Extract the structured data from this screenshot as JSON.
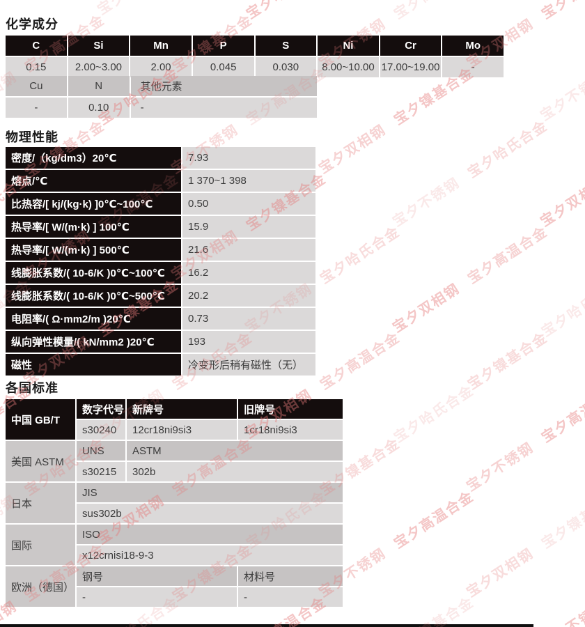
{
  "page": {
    "watermark": {
      "texts": [
        "宝夕不锈钢",
        "宝夕双相钢",
        "宝夕哈氏合金",
        "宝夕高温合金",
        "宝夕镍基合金"
      ],
      "color": "#e57a7a"
    }
  },
  "chemical": {
    "heading": "化学成分",
    "header": [
      "C",
      "Si",
      "Mn",
      "P",
      "S",
      "Ni",
      "Cr",
      "Mo"
    ],
    "values": [
      "0.15",
      "2.00~3.00",
      "2.00",
      "0.045",
      "0.030",
      "8.00~10.00",
      "17.00~19.00",
      "-"
    ],
    "extra_header": [
      "Cu",
      "N",
      "其他元素"
    ],
    "extra_values": [
      "-",
      "0.10",
      "-"
    ]
  },
  "physical": {
    "heading": "物理性能",
    "rows": [
      {
        "label": "密度/（kg/dm3）20℃",
        "value": "7.93"
      },
      {
        "label": "熔点/℃",
        "value": "1 370~1 398"
      },
      {
        "label": "比热容/[ kj/(kg·k) ]0℃~100℃",
        "value": "0.50"
      },
      {
        "label": "热导率/[ W/(m·k) ] 100℃",
        "value": "15.9"
      },
      {
        "label": "热导率/[ W/(m·k) ] 500℃",
        "value": "21.6"
      },
      {
        "label": "线膨胀系数/( 10-6/K )0℃~100℃",
        "value": "16.2"
      },
      {
        "label": "线膨胀系数/( 10-6/K )0℃~500℃",
        "value": "20.2"
      },
      {
        "label": "电阻率/( Ω·mm2/m )20℃",
        "value": "0.73"
      },
      {
        "label": "纵向弹性模量/( kN/mm2 )20℃",
        "value": "193"
      },
      {
        "label": "磁性",
        "value": "冷变形后稍有磁性（无）"
      }
    ]
  },
  "standards": {
    "heading": "各国标准",
    "groups": [
      {
        "region": "中国 GB/T",
        "rows": [
          [
            "数字代号",
            "新牌号",
            "旧牌号"
          ],
          [
            "s30240",
            "12cr18ni9si3",
            "1cr18ni9si3"
          ]
        ]
      },
      {
        "region": "美国 ASTM",
        "rows": [
          [
            "UNS",
            "ASTM"
          ],
          [
            "s30215",
            "302b"
          ]
        ]
      },
      {
        "region": "日本",
        "rows": [
          [
            "JIS"
          ],
          [
            "sus302b"
          ]
        ]
      },
      {
        "region": "国际",
        "rows": [
          [
            "ISO"
          ],
          [
            "x12crnisi18-9-3"
          ]
        ]
      },
      {
        "region": "欧洲（德国）",
        "rows": [
          [
            "钢号",
            "材料号"
          ],
          [
            "-",
            "-"
          ]
        ]
      }
    ]
  }
}
